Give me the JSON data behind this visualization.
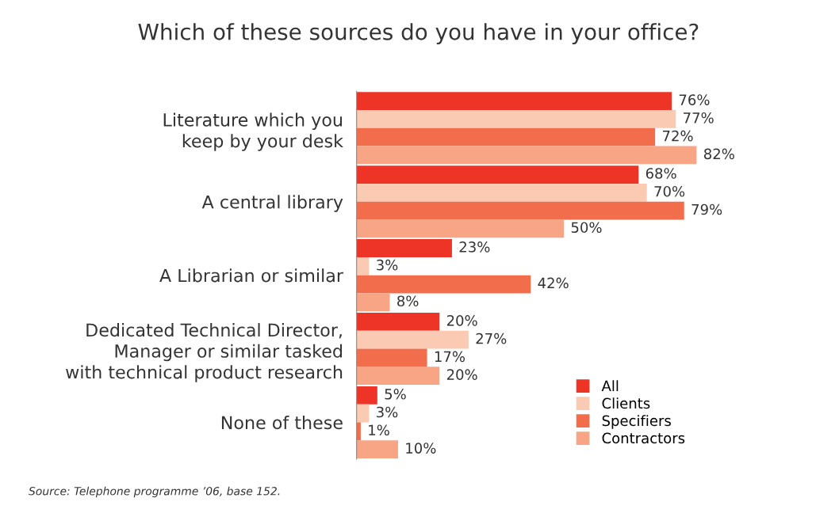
{
  "chart_data": {
    "type": "bar",
    "orientation": "horizontal",
    "title": "Which of these sources do you have in your office?",
    "categories": [
      "Literature which you\nkeep by your desk",
      "A central library",
      "A Librarian or similar",
      "Dedicated Technical Director,\nManager or similar tasked\nwith technical product research",
      "None of these"
    ],
    "series": [
      {
        "name": "All",
        "color": "#ee3427",
        "values": [
          76,
          68,
          23,
          20,
          5
        ],
        "value_labels": [
          "76%",
          "68%",
          "23%",
          "20%",
          "5%"
        ]
      },
      {
        "name": "Clients",
        "color": "#fbcab2",
        "values": [
          77,
          70,
          3,
          27,
          3
        ],
        "value_labels": [
          "77%",
          "70%",
          "3%",
          "27%",
          "3%"
        ]
      },
      {
        "name": "Specifiers",
        "color": "#f26d4c",
        "values": [
          72,
          79,
          42,
          17,
          1
        ],
        "value_labels": [
          "72%",
          "79%",
          "42%",
          "17%",
          "1%"
        ]
      },
      {
        "name": "Contractors",
        "color": "#f8a586",
        "values": [
          82,
          50,
          8,
          20,
          10
        ],
        "value_labels": [
          "82%",
          "50%",
          "8%",
          "20%",
          "10%"
        ]
      }
    ],
    "legend": "bottom right",
    "grid": false,
    "annotations": [
      "Source: Telephone programme ’06, base 152."
    ]
  }
}
